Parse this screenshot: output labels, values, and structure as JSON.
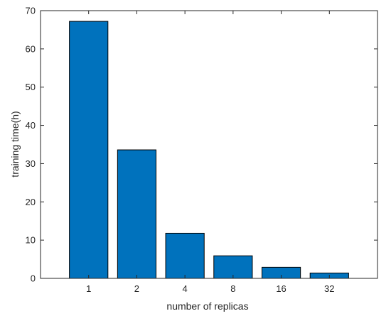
{
  "chart_data": {
    "type": "bar",
    "title": "",
    "xlabel": "number of replicas",
    "ylabel": "training time(h)",
    "categories": [
      "1",
      "2",
      "4",
      "8",
      "16",
      "32"
    ],
    "values": [
      67.2,
      33.6,
      11.8,
      5.9,
      2.9,
      1.4
    ],
    "ylim": [
      0,
      70
    ],
    "yticks": [
      0,
      10,
      20,
      30,
      40,
      50,
      60,
      70
    ],
    "grid": false,
    "legend": "none",
    "colors": {
      "bar_fill": "#0072BD",
      "bar_stroke": "#000000",
      "axis": "#262626"
    }
  }
}
